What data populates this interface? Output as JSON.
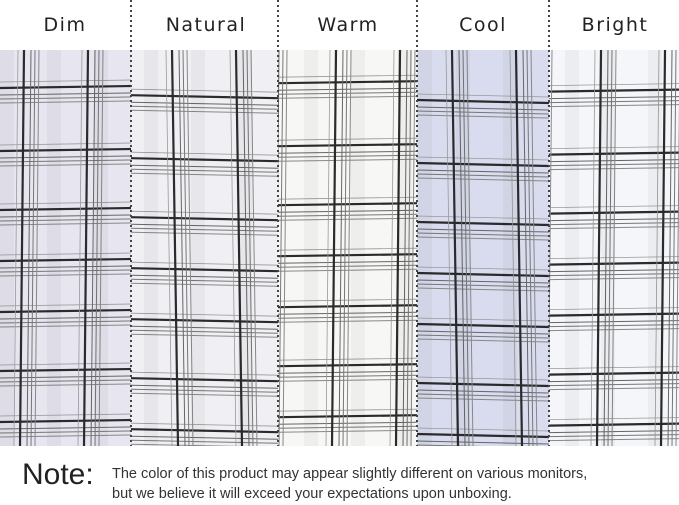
{
  "labels": [
    "Dim",
    "Natural",
    "Warm",
    "Cool",
    "Bright"
  ],
  "panel_tints": [
    "#e7e5ef",
    "#f0f0f4",
    "#f7f7f5",
    "#d9dcee",
    "#f5f6fa"
  ],
  "note": {
    "title": "Note:",
    "line1": "The color of this product may appear slightly different on various monitors,",
    "line2": "but we believe it will exceed your expectations upon unboxing."
  }
}
